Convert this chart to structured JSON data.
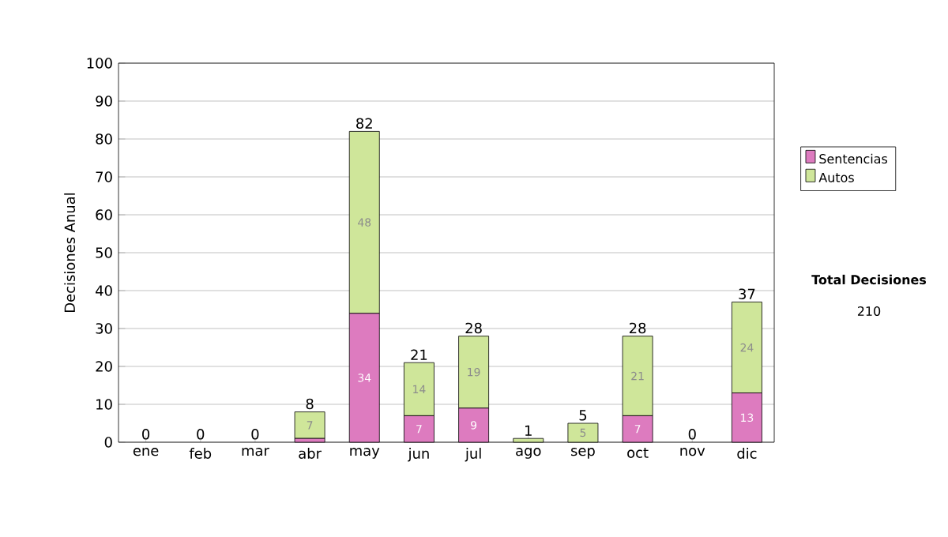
{
  "chart_data": {
    "type": "bar",
    "stacked": true,
    "categories": [
      "ene",
      "feb",
      "mar",
      "abr",
      "may",
      "jun",
      "jul",
      "ago",
      "sep",
      "oct",
      "nov",
      "dic"
    ],
    "series": [
      {
        "name": "Sentencias",
        "color": "#dd7bbf",
        "values": [
          0,
          0,
          0,
          1,
          34,
          7,
          9,
          0,
          0,
          7,
          0,
          13
        ],
        "value_labels": [
          null,
          null,
          null,
          null,
          "34",
          "7",
          "9",
          null,
          null,
          "7",
          null,
          "13"
        ]
      },
      {
        "name": "Autos",
        "color": "#cfe69a",
        "values": [
          0,
          0,
          0,
          7,
          48,
          14,
          19,
          1,
          5,
          21,
          0,
          24
        ],
        "value_labels": [
          null,
          null,
          null,
          "7",
          "48",
          "14",
          "19",
          null,
          "5",
          "21",
          null,
          "24"
        ]
      }
    ],
    "totals": [
      "0",
      "0",
      "0",
      "8",
      "82",
      "21",
      "28",
      "1",
      "5",
      "28",
      "0",
      "37"
    ],
    "ylabel": "Decisiones Anual",
    "ylim": [
      0,
      100
    ],
    "yticks": [
      0,
      10,
      20,
      30,
      40,
      50,
      60,
      70,
      80,
      90,
      100
    ],
    "grid": "y",
    "legend": "right",
    "annotations": [
      "Total Decisiones",
      "210"
    ]
  }
}
